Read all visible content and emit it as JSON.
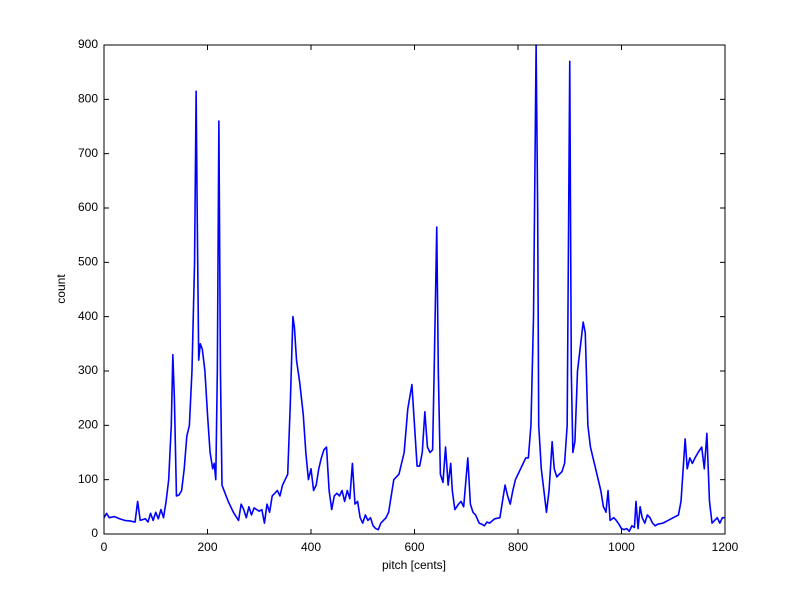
{
  "chart_data": {
    "type": "line",
    "xlabel": "pitch [cents]",
    "ylabel": "count",
    "color": "#0000ff",
    "xlim": [
      0,
      1200
    ],
    "xticks": [
      0,
      200,
      400,
      600,
      800,
      1000,
      1200
    ],
    "ylim": [
      0,
      900
    ],
    "yticks": [
      0,
      100,
      200,
      300,
      400,
      500,
      600,
      700,
      800,
      900
    ],
    "x": [
      0,
      5,
      10,
      20,
      30,
      40,
      50,
      60,
      65,
      70,
      80,
      85,
      90,
      95,
      100,
      105,
      110,
      115,
      120,
      125,
      130,
      133,
      136,
      140,
      145,
      150,
      155,
      160,
      165,
      170,
      175,
      178,
      180,
      183,
      186,
      190,
      195,
      200,
      205,
      210,
      213,
      216,
      219,
      222,
      225,
      228,
      232,
      240,
      250,
      260,
      265,
      270,
      275,
      280,
      285,
      290,
      300,
      305,
      310,
      315,
      320,
      325,
      330,
      335,
      340,
      345,
      350,
      355,
      360,
      365,
      368,
      372,
      378,
      385,
      390,
      395,
      400,
      405,
      410,
      415,
      420,
      425,
      430,
      435,
      440,
      445,
      450,
      455,
      460,
      465,
      470,
      475,
      480,
      485,
      490,
      495,
      500,
      505,
      510,
      515,
      520,
      525,
      530,
      535,
      540,
      545,
      550,
      560,
      570,
      580,
      587,
      595,
      600,
      605,
      610,
      615,
      620,
      625,
      630,
      635,
      638,
      643,
      646,
      650,
      655,
      660,
      665,
      670,
      673,
      678,
      685,
      690,
      695,
      703,
      708,
      713,
      718,
      725,
      730,
      735,
      740,
      745,
      755,
      765,
      770,
      775,
      780,
      785,
      790,
      795,
      800,
      805,
      810,
      815,
      820,
      825,
      830,
      835,
      838,
      840,
      845,
      850,
      855,
      860,
      866,
      870,
      875,
      880,
      885,
      890,
      895,
      900,
      903,
      906,
      910,
      915,
      926,
      930,
      935,
      940,
      945,
      950,
      955,
      960,
      965,
      968,
      970,
      974,
      978,
      985,
      990,
      995,
      1000,
      1005,
      1010,
      1015,
      1020,
      1025,
      1028,
      1032,
      1036,
      1040,
      1045,
      1050,
      1055,
      1060,
      1065,
      1070,
      1080,
      1090,
      1100,
      1110,
      1115,
      1123,
      1127,
      1132,
      1137,
      1142,
      1148,
      1155,
      1160,
      1165,
      1170,
      1175,
      1180,
      1185,
      1190,
      1195,
      1200
    ],
    "values": [
      30,
      38,
      30,
      32,
      28,
      25,
      24,
      22,
      60,
      25,
      28,
      22,
      38,
      25,
      40,
      28,
      45,
      30,
      60,
      100,
      200,
      330,
      250,
      70,
      72,
      80,
      120,
      180,
      200,
      300,
      500,
      815,
      600,
      320,
      350,
      340,
      300,
      220,
      150,
      120,
      130,
      100,
      300,
      760,
      300,
      90,
      80,
      60,
      40,
      25,
      55,
      45,
      30,
      50,
      35,
      48,
      42,
      45,
      20,
      55,
      40,
      70,
      75,
      80,
      70,
      90,
      100,
      110,
      240,
      400,
      380,
      320,
      280,
      220,
      150,
      100,
      120,
      80,
      90,
      120,
      140,
      155,
      160,
      80,
      45,
      70,
      75,
      70,
      80,
      60,
      80,
      65,
      130,
      55,
      60,
      30,
      20,
      35,
      25,
      30,
      15,
      10,
      8,
      20,
      25,
      30,
      40,
      100,
      110,
      150,
      230,
      275,
      200,
      125,
      125,
      150,
      225,
      160,
      150,
      155,
      300,
      565,
      300,
      110,
      95,
      160,
      90,
      130,
      80,
      45,
      55,
      60,
      50,
      140,
      55,
      40,
      35,
      20,
      18,
      15,
      22,
      20,
      28,
      30,
      60,
      90,
      70,
      55,
      80,
      100,
      110,
      120,
      130,
      140,
      140,
      200,
      400,
      900,
      600,
      200,
      120,
      80,
      40,
      80,
      170,
      120,
      105,
      110,
      115,
      130,
      200,
      870,
      300,
      150,
      170,
      300,
      390,
      370,
      200,
      160,
      140,
      120,
      100,
      80,
      50,
      45,
      40,
      80,
      25,
      30,
      25,
      18,
      10,
      8,
      10,
      5,
      15,
      12,
      60,
      10,
      50,
      30,
      20,
      35,
      30,
      20,
      15,
      18,
      20,
      25,
      30,
      35,
      60,
      175,
      120,
      140,
      130,
      140,
      150,
      160,
      120,
      185,
      60,
      20,
      25,
      30,
      20,
      30,
      30
    ]
  }
}
